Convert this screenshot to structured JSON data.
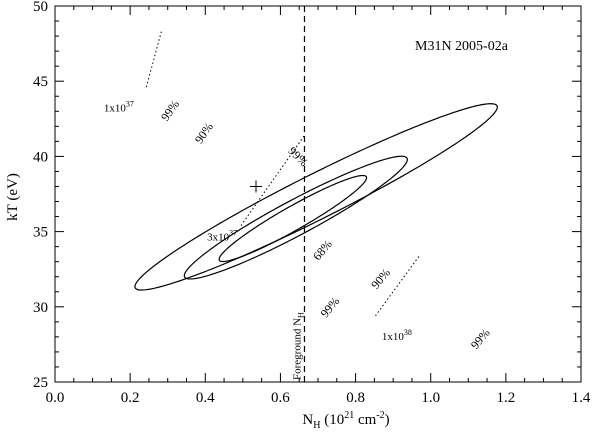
{
  "chart_data": {
    "type": "contour",
    "title": "M31N 2005-02a",
    "xlabel": "N",
    "xlabel_sub": "H",
    "xlabel_rest": " (10",
    "xlabel_sup": "21",
    "xlabel_unit": " cm",
    "xlabel_unit_sup": "-2",
    "xlabel_close": ")",
    "ylabel": "kT (eV)",
    "xlim": [
      0.0,
      1.4
    ],
    "ylim": [
      25,
      50
    ],
    "xticks": [
      "0.0",
      "0.2",
      "0.4",
      "0.6",
      "0.8",
      "1.0",
      "1.2",
      "1.4"
    ],
    "yticks": [
      "25",
      "30",
      "35",
      "40",
      "45",
      "50"
    ],
    "best_fit": {
      "x": 0.535,
      "y": 38.0
    },
    "contours": [
      {
        "level": "68%",
        "ellipse": {
          "cx": 0.633,
          "cy": 35.87,
          "a": 0.225,
          "b": 0.0316,
          "theta_deg": -29.6
        }
      },
      {
        "level": "90%",
        "ellipse": {
          "cx": 0.641,
          "cy": 35.93,
          "a": 0.3355,
          "b": 0.0466,
          "theta_deg": -28.1
        }
      },
      {
        "level": "99%",
        "ellipse": {
          "cx": 0.695,
          "cy": 37.31,
          "a": 0.539,
          "b": 0.0595,
          "theta_deg": -26.7
        }
      }
    ],
    "contour_labels": [
      {
        "text": "68%",
        "x": 0.72,
        "y": 33.6,
        "rotate": -50
      },
      {
        "text": "90%",
        "x": 0.875,
        "y": 31.7,
        "rotate": -50
      },
      {
        "text": "90%",
        "x": 0.405,
        "y": 41.4,
        "rotate": -55
      },
      {
        "text": "99%",
        "x": 0.64,
        "y": 39.8,
        "rotate": 45
      },
      {
        "text": "99%",
        "x": 0.315,
        "y": 42.9,
        "rotate": -55
      },
      {
        "text": "99%",
        "x": 0.74,
        "y": 29.8,
        "rotate": -50
      },
      {
        "text": "99%",
        "x": 1.14,
        "y": 27.7,
        "rotate": -50
      }
    ],
    "foreground_nh": {
      "x": 0.664,
      "label": "Foreground N",
      "label_sub": "H"
    },
    "luminosity_lines": [
      {
        "label": "1x10",
        "sup": "37",
        "points": [
          [
            0.283,
            48.3
          ],
          [
            0.243,
            44.6
          ]
        ],
        "label_at": [
          0.13,
          43.0
        ]
      },
      {
        "label": "3x10",
        "sup": "37",
        "points": [
          [
            0.495,
            35.4
          ],
          [
            0.664,
            41.4
          ]
        ],
        "label_at": [
          0.405,
          34.4
        ]
      },
      {
        "label": "1x10",
        "sup": "38",
        "points": [
          [
            0.853,
            29.4
          ],
          [
            0.97,
            33.4
          ]
        ],
        "label_at": [
          0.87,
          27.8
        ]
      }
    ]
  }
}
